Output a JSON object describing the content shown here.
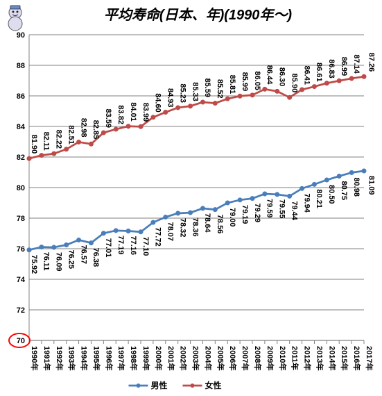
{
  "chart": {
    "type": "line",
    "title": "平均寿命(日本、年)(1990年～)",
    "title_fontsize": 20,
    "background_color": "#ffffff",
    "plot_background": "#ffffff",
    "border_color": "#808080",
    "grid_color": "#808080",
    "ylim": [
      70,
      90
    ],
    "ytick_step": 2,
    "yticks": [
      70,
      72,
      74,
      76,
      78,
      80,
      82,
      84,
      86,
      88,
      90
    ],
    "categories": [
      "1990年",
      "1991年",
      "1992年",
      "1993年",
      "1994年",
      "1995年",
      "1996年",
      "1997年",
      "1998年",
      "1999年",
      "2000年",
      "2001年",
      "2002年",
      "2003年",
      "2004年",
      "2005年",
      "2006年",
      "2007年",
      "2008年",
      "2009年",
      "2010年",
      "2011年",
      "2012年",
      "2013年",
      "2014年",
      "2015年",
      "2016年",
      "2017年"
    ],
    "series": [
      {
        "name": "男性",
        "color": "#4a7ebb",
        "marker": "circle",
        "marker_size": 6,
        "line_width": 2.75,
        "values": [
          75.92,
          76.11,
          76.09,
          76.25,
          76.57,
          76.38,
          77.01,
          77.19,
          77.16,
          77.1,
          77.72,
          78.07,
          78.32,
          78.36,
          78.64,
          78.56,
          79.0,
          79.19,
          79.29,
          79.59,
          79.55,
          79.44,
          79.94,
          80.21,
          80.5,
          80.75,
          80.98,
          81.09
        ]
      },
      {
        "name": "女性",
        "color": "#be4b48",
        "marker": "circle",
        "marker_size": 6,
        "line_width": 2.75,
        "values": [
          81.9,
          82.11,
          82.22,
          82.51,
          82.98,
          82.85,
          83.59,
          83.82,
          84.01,
          83.99,
          84.6,
          84.93,
          85.23,
          85.33,
          85.59,
          85.52,
          85.81,
          85.99,
          86.05,
          86.44,
          86.3,
          85.9,
          86.41,
          86.61,
          86.83,
          86.99,
          87.14,
          87.26
        ]
      }
    ],
    "legend": {
      "position": "bottom",
      "labels": [
        "男性",
        "女性"
      ]
    },
    "highlight_circle_color": "#ff0000",
    "last_label_fontsize": 15
  }
}
